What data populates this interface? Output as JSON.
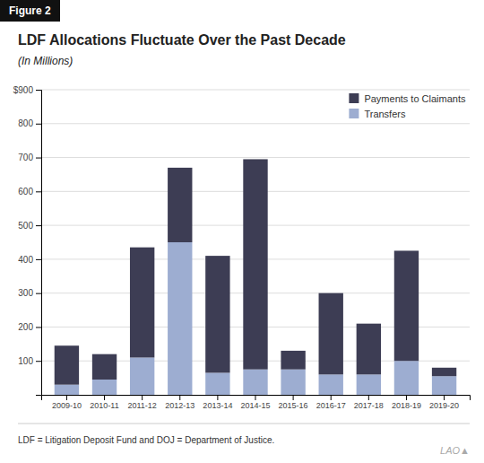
{
  "chart_data": {
    "type": "bar",
    "title": "LDF Allocations Fluctuate Over the Past Decade",
    "subtitle": "(In Millions)",
    "annotations": [
      "Figure 2",
      "LDF = Litigation Deposit Fund and DOJ = Department of Justice.",
      "LAO▲"
    ],
    "categories": [
      "2009-10",
      "2010-11",
      "2011-12",
      "2012-13",
      "2013-14",
      "2014-15",
      "2015-16",
      "2016-17",
      "2017-18",
      "2018-19",
      "2019-20"
    ],
    "series": [
      {
        "name": "Transfers",
        "color": "#9dadd1",
        "values": [
          30,
          45,
          110,
          450,
          65,
          75,
          75,
          60,
          60,
          100,
          55
        ]
      },
      {
        "name": "Payments to Claimants",
        "color": "#3d3d54",
        "values": [
          115,
          75,
          325,
          220,
          345,
          620,
          55,
          240,
          150,
          325,
          25
        ]
      }
    ],
    "stacked": true,
    "ylim": [
      0,
      900
    ],
    "yticks": [
      100,
      200,
      300,
      400,
      500,
      600,
      700,
      800,
      {
        "value": 900,
        "label": "$900"
      }
    ],
    "grid": true,
    "legend": "upper right"
  }
}
